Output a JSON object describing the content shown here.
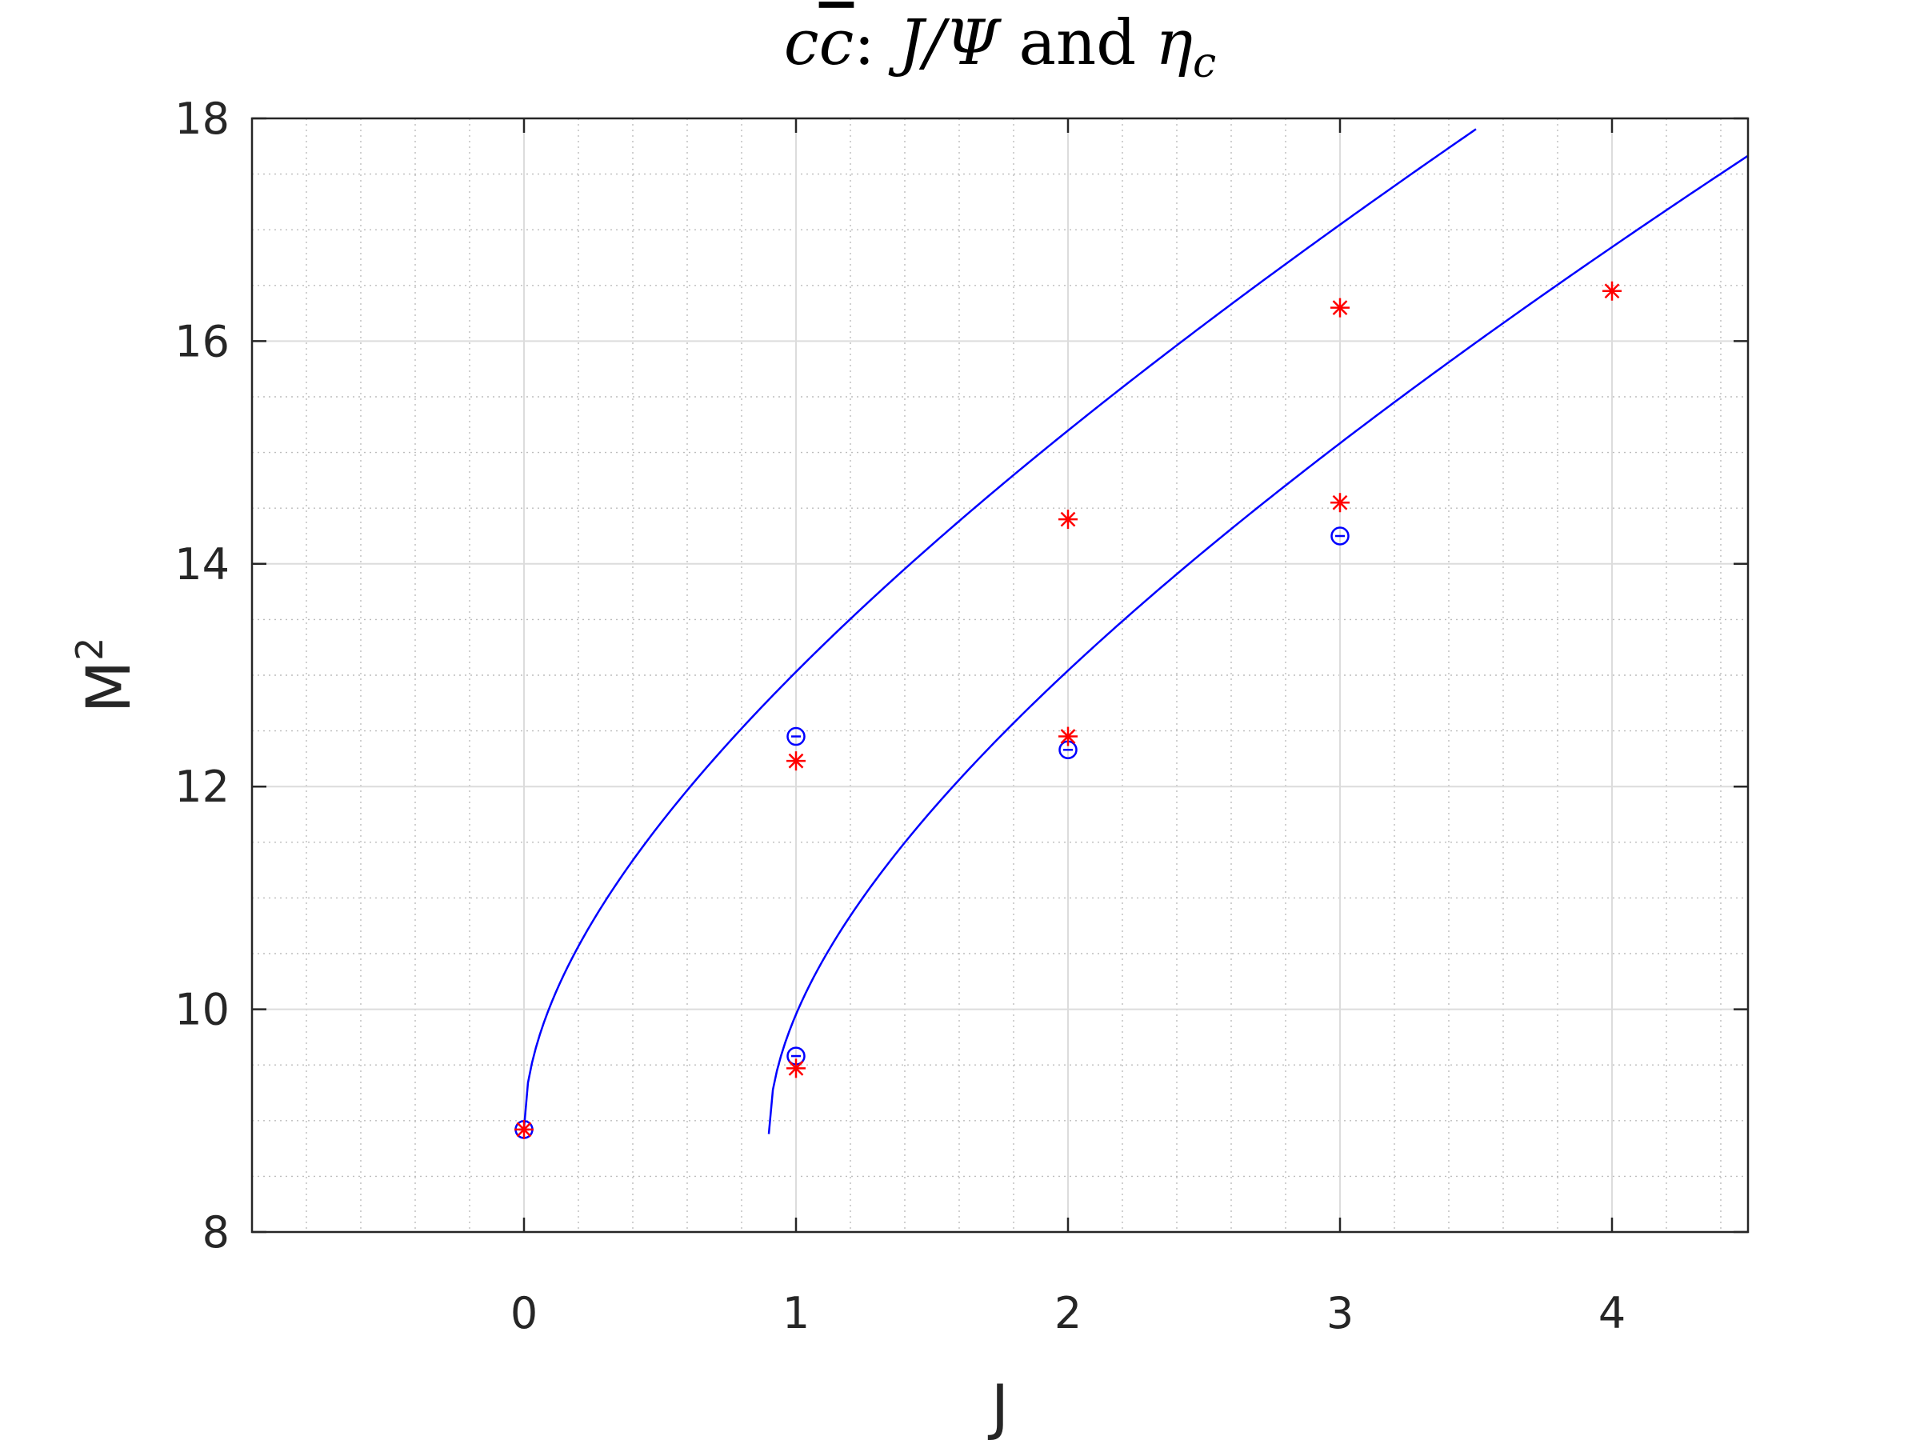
{
  "chart_data": {
    "type": "line",
    "title_parts": {
      "pre": "c",
      "bar": "c",
      "colon": ":",
      "psi": "J/Ψ",
      "and": "and",
      "eta": "η",
      "sub": "c"
    },
    "xlabel": "J",
    "ylabel": "M",
    "ylabel_sup": "2",
    "xlim": [
      -1,
      4.5
    ],
    "ylim": [
      8,
      18
    ],
    "xticks": [
      0,
      1,
      2,
      3,
      4
    ],
    "yticks": [
      8,
      10,
      12,
      14,
      16,
      18
    ],
    "grid": true,
    "minor_grid": true,
    "colors": {
      "fit": "#0000ff",
      "measured": "#0000ff",
      "computed": "#ff0000",
      "axis": "#262626"
    },
    "series": [
      {
        "kind": "fit-curve",
        "x0": 0.0,
        "m0sq": 8.93,
        "a": 3.3,
        "b": 0.8,
        "x_end": 3.5
      },
      {
        "kind": "fit-curve",
        "x0": 0.9,
        "m0sq": 8.88,
        "a": 3.15,
        "b": 0.78,
        "x_end": 4.5
      },
      {
        "kind": "measured",
        "marker": "circle",
        "x": [
          0,
          1,
          1,
          2,
          3
        ],
        "y": [
          8.92,
          12.45,
          9.58,
          12.33,
          14.25
        ]
      },
      {
        "kind": "computed",
        "marker": "asterisk",
        "x": [
          0,
          1,
          2,
          3,
          1,
          2,
          3,
          4
        ],
        "y": [
          8.92,
          12.23,
          14.4,
          16.3,
          9.47,
          12.45,
          14.55,
          16.45
        ]
      }
    ]
  }
}
